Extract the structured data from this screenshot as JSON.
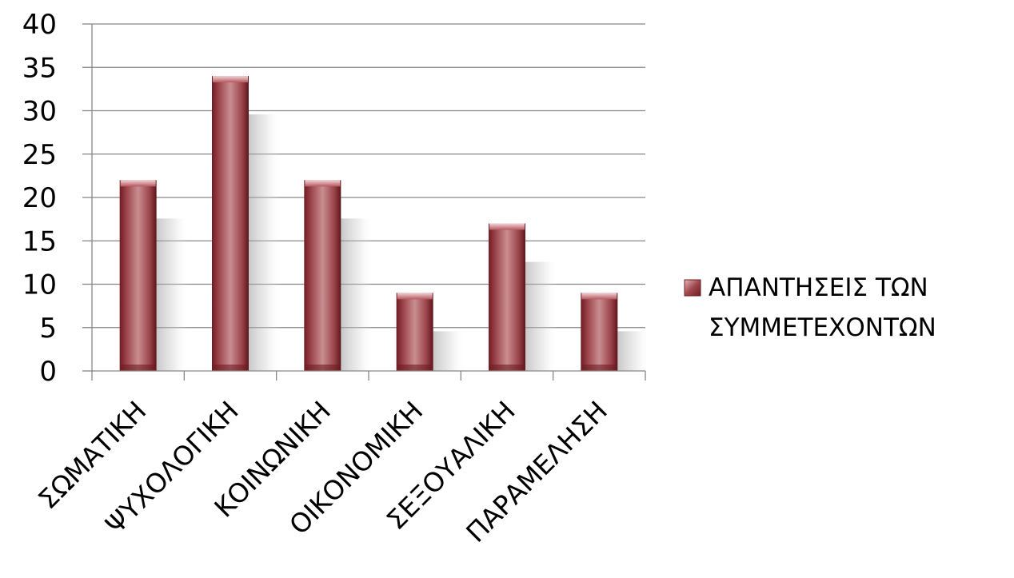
{
  "chart_data": {
    "type": "bar",
    "categories": [
      "ΣΩΜΑΤΙΚΗ",
      "ΨΥΧΟΛΟΓΙΚΗ",
      "ΚΟΙΝΩΝΙΚΗ",
      "ΟΙΚΟΝΟΜΙΚΗ",
      "ΣΕΞΟΥΑΛΙΚΗ",
      "ΠΑΡΑΜΕΛΗΣΗ"
    ],
    "series": [
      {
        "name": "ΑΠΑΝΤΗΣΕΙΣ ΤΩΝ ΣΥΜΜΕΤΕΧΟΝΤΩΝ",
        "legend_lines": [
          "ΑΠΑΝΤΗΣΕΙΣ ΤΩΝ",
          "ΣΥΜΜΕΤΕΧΟΝΤΩΝ"
        ],
        "values": [
          22,
          34,
          22,
          9,
          17,
          9
        ],
        "color": "#a0494f"
      }
    ],
    "yticks": [
      "0",
      "5",
      "10",
      "15",
      "20",
      "25",
      "30",
      "35",
      "40"
    ],
    "ylim": [
      0,
      40
    ],
    "grid": true,
    "legend_position": "right"
  }
}
